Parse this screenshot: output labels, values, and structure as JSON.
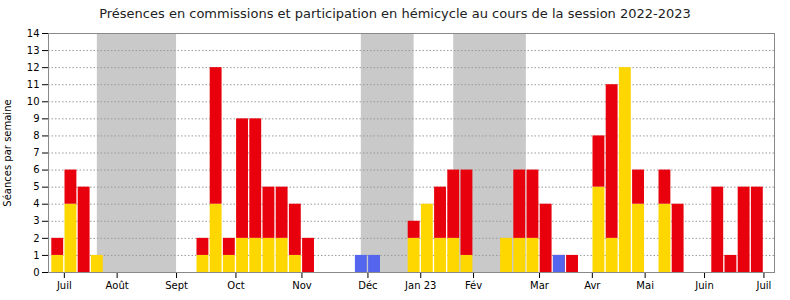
{
  "chart_data": {
    "type": "bar",
    "title": "Présences en commissions et participation en hémicycle au cours de la session 2022-2023",
    "ylabel": "Séances par semaine",
    "x": [
      0,
      1,
      2,
      3,
      9,
      10,
      11,
      12,
      13,
      14,
      15,
      16,
      17,
      18,
      19,
      20,
      21,
      22,
      23,
      24,
      25,
      27,
      28,
      29,
      30,
      31,
      32,
      33,
      34,
      35,
      36,
      37,
      38,
      39,
      40,
      41,
      42,
      43,
      44,
      45,
      46,
      47,
      48,
      49,
      50,
      51,
      52,
      53
    ],
    "xlim": [
      -0.7,
      54.3
    ],
    "xticks": [
      {
        "value": 0.5,
        "label": "Juil"
      },
      {
        "value": 4.5,
        "label": "Août"
      },
      {
        "value": 9.0,
        "label": "Sept"
      },
      {
        "value": 13.5,
        "label": "Oct"
      },
      {
        "value": 18.5,
        "label": "Nov"
      },
      {
        "value": 23.5,
        "label": "Déc"
      },
      {
        "value": 27.5,
        "label": "Jan 23"
      },
      {
        "value": 31.5,
        "label": "Fév"
      },
      {
        "value": 36.5,
        "label": "Mar"
      },
      {
        "value": 40.5,
        "label": "Avr"
      },
      {
        "value": 44.5,
        "label": "Mai"
      },
      {
        "value": 49.0,
        "label": "Juin"
      },
      {
        "value": 53.5,
        "label": "Juil"
      }
    ],
    "ylim": [
      0,
      14
    ],
    "yticks": [
      0,
      1,
      2,
      3,
      4,
      5,
      6,
      7,
      8,
      9,
      10,
      11,
      12,
      13,
      14
    ],
    "grid": true,
    "series": [
      {
        "color": "#FFD700",
        "stacked": true,
        "values": [
          1,
          4,
          0,
          1,
          0,
          0,
          1,
          4,
          1,
          2,
          2,
          2,
          2,
          1,
          0,
          0,
          0,
          0,
          0,
          0,
          0,
          2,
          4,
          2,
          2,
          1,
          0,
          0,
          2,
          2,
          2,
          0,
          0,
          0,
          0,
          5,
          2,
          12,
          4,
          0,
          4,
          0,
          0,
          0,
          0,
          0,
          0,
          0
        ]
      },
      {
        "color": "#E8000D",
        "stacked": true,
        "values": [
          1,
          2,
          5,
          0,
          0,
          0,
          1,
          8,
          1,
          7,
          7,
          3,
          3,
          3,
          2,
          0,
          0,
          0,
          0,
          0,
          0,
          1,
          0,
          3,
          4,
          5,
          0,
          0,
          0,
          4,
          4,
          4,
          1,
          1,
          0,
          3,
          9,
          0,
          2,
          0,
          2,
          4,
          0,
          0,
          5,
          1,
          5,
          5
        ]
      },
      {
        "color": "#5566EE",
        "stacked": false,
        "values": [
          0,
          0,
          0,
          0,
          0,
          0,
          0,
          0,
          0,
          0,
          0,
          0,
          0,
          0,
          0,
          0,
          0,
          0,
          1,
          1,
          0,
          0,
          0,
          0,
          0,
          0,
          0,
          0,
          0,
          0,
          0,
          0,
          1,
          0,
          0,
          0,
          0,
          0,
          0,
          0,
          0,
          0,
          0,
          0,
          0,
          0,
          0,
          0
        ]
      }
    ],
    "shade_bands": {
      "color": "#c0c0c0",
      "ranges": [
        [
          3.0,
          9.0
        ],
        [
          23.0,
          27.0
        ],
        [
          30.0,
          35.5
        ]
      ]
    }
  }
}
